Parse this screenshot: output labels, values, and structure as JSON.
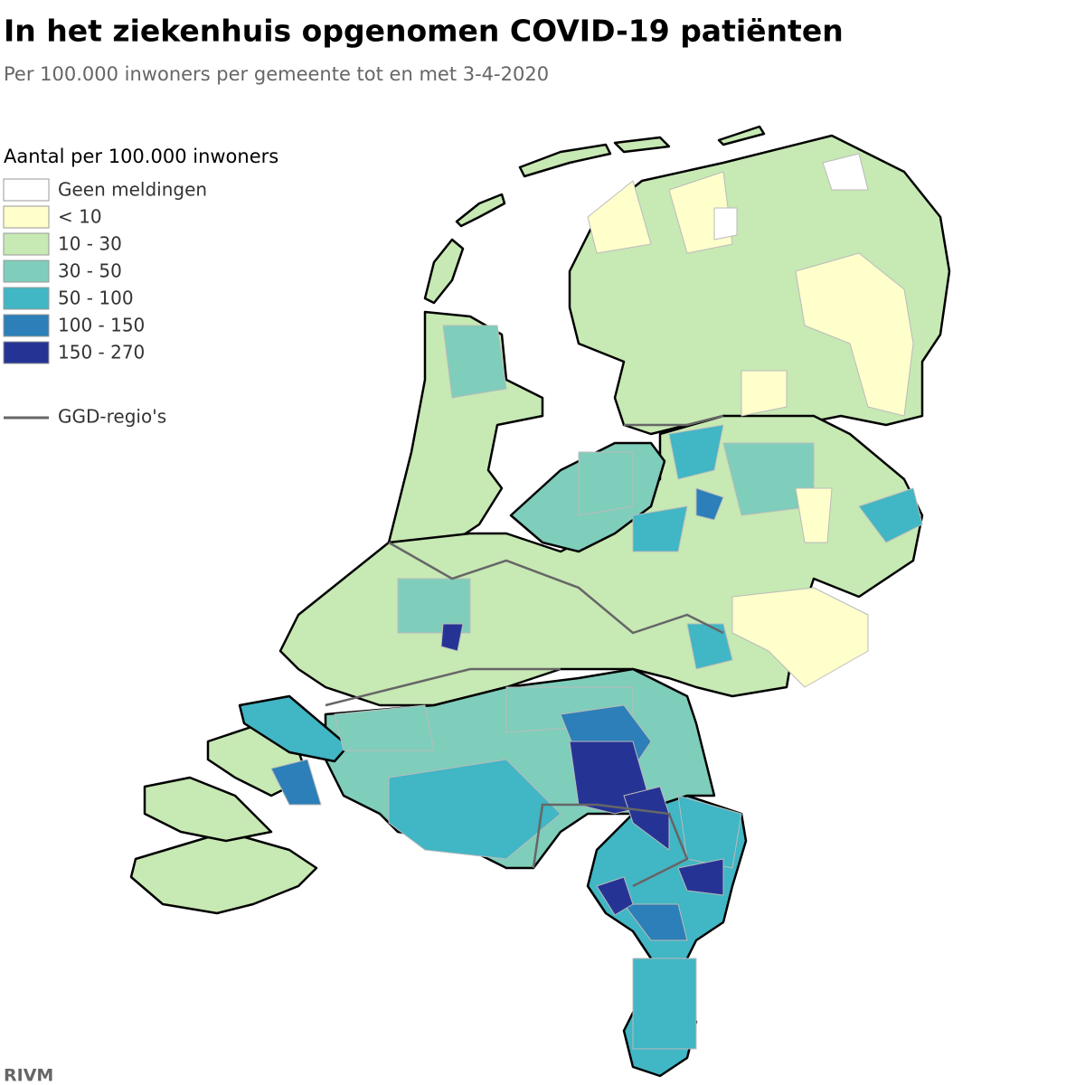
{
  "header": {
    "title": "In het ziekenhuis opgenomen COVID-19 patiënten",
    "subtitle": "Per 100.000 inwoners per gemeente tot en met 3-4-2020"
  },
  "legend": {
    "title": "Aantal per 100.000 inwoners",
    "items": [
      {
        "label": "Geen meldingen",
        "color": "#ffffff"
      },
      {
        "label": "< 10",
        "color": "#ffffcc"
      },
      {
        "label": "10 - 30",
        "color": "#c7e9b4"
      },
      {
        "label": "30 - 50",
        "color": "#7fcdbb"
      },
      {
        "label": "50 - 100",
        "color": "#41b6c4"
      },
      {
        "label": "100 - 150",
        "color": "#2c7fb8"
      },
      {
        "label": "150 - 270",
        "color": "#253494"
      }
    ],
    "ggd": {
      "label": "GGD-regio's",
      "color": "#666666"
    }
  },
  "source": "RIVM"
}
